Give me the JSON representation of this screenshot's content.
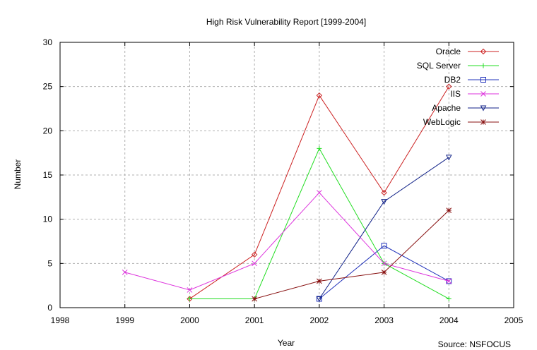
{
  "chart_data": {
    "type": "line",
    "title": "High Risk Vulnerability Report [1999-2004]",
    "xlabel": "Year",
    "ylabel": "Number",
    "source": "Source: NSFOCUS",
    "xlim": [
      1998,
      2005
    ],
    "ylim": [
      0,
      30
    ],
    "xticks": [
      1998,
      1999,
      2000,
      2001,
      2002,
      2003,
      2004,
      2005
    ],
    "yticks": [
      0,
      5,
      10,
      15,
      20,
      25,
      30
    ],
    "grid": true,
    "legend_position": "top-right",
    "series": [
      {
        "name": "Oracle",
        "color": "#cc2222",
        "marker": "diamond",
        "x": [
          2000,
          2001,
          2002,
          2003,
          2004
        ],
        "y": [
          1,
          6,
          24,
          13,
          25
        ]
      },
      {
        "name": "SQL Server",
        "color": "#22dd22",
        "marker": "plus",
        "x": [
          2000,
          2001,
          2002,
          2003,
          2004
        ],
        "y": [
          1,
          1,
          18,
          5,
          1
        ]
      },
      {
        "name": "DB2",
        "color": "#2233bb",
        "marker": "square",
        "x": [
          2002,
          2003,
          2004
        ],
        "y": [
          1,
          7,
          3
        ]
      },
      {
        "name": "IIS",
        "color": "#dd33dd",
        "marker": "x",
        "x": [
          1999,
          2000,
          2001,
          2002,
          2003,
          2004
        ],
        "y": [
          4,
          2,
          5,
          13,
          5,
          3
        ]
      },
      {
        "name": "Apache",
        "color": "#112288",
        "marker": "triangle-down",
        "x": [
          2002,
          2003,
          2004
        ],
        "y": [
          1,
          12,
          17
        ]
      },
      {
        "name": "WebLogic",
        "color": "#881111",
        "marker": "star",
        "x": [
          2001,
          2002,
          2003,
          2004
        ],
        "y": [
          1,
          3,
          4,
          11
        ]
      }
    ]
  }
}
